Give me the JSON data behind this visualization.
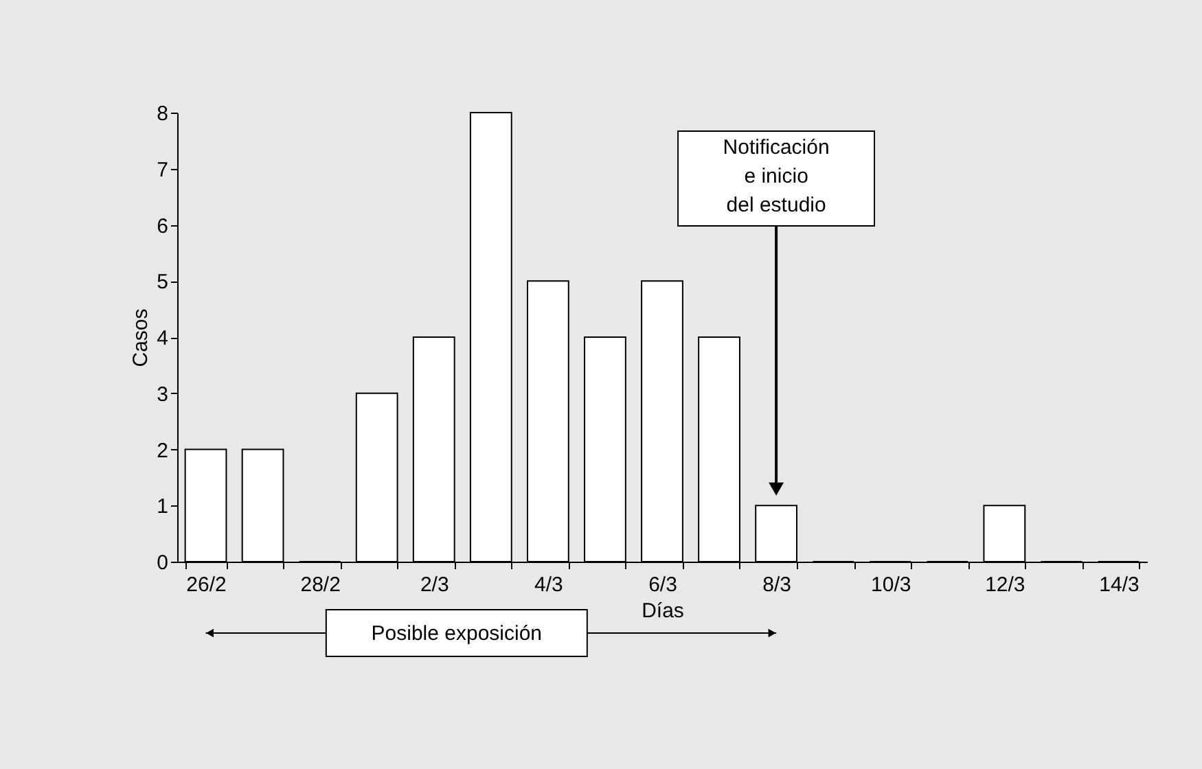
{
  "chart_data": {
    "type": "bar",
    "xlabel": "Días",
    "ylabel": "Casos",
    "categories": [
      "26/2",
      null,
      "28/2",
      null,
      "2/3",
      null,
      "4/3",
      null,
      "6/3",
      null,
      "8/3",
      null,
      "10/3",
      null,
      "12/3",
      null,
      "14/3"
    ],
    "values": [
      2,
      2,
      0,
      3,
      4,
      8,
      5,
      4,
      5,
      4,
      1,
      0,
      0,
      0,
      1,
      0,
      0
    ],
    "color": "#ffffff",
    "ylim": [
      0,
      8
    ],
    "yticks": [
      0,
      1,
      2,
      3,
      4,
      5,
      6,
      7,
      8
    ],
    "grid": false,
    "annotations": [
      "Notificación\ne inicio\ndel estudio",
      "Posible exposición"
    ]
  }
}
